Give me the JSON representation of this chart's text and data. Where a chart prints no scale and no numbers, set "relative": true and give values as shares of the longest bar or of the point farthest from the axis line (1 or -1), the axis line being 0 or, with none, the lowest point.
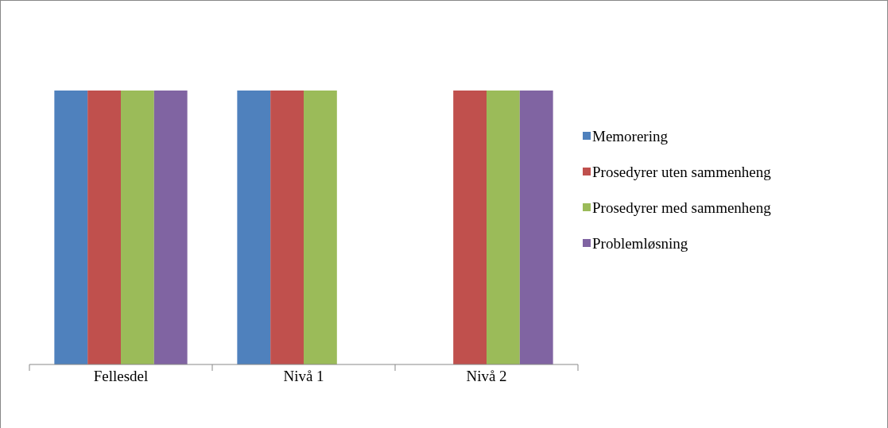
{
  "chart_data": {
    "type": "bar",
    "relative": true,
    "categories": [
      "Fellesdel",
      "Nivå 1",
      "Nivå 2"
    ],
    "series": [
      {
        "name": "Memorering",
        "color": "#4f81bd",
        "values": [
          1,
          1,
          null
        ]
      },
      {
        "name": "Prosedyrer uten sammenheng",
        "color": "#c0504d",
        "values": [
          1,
          1,
          1
        ]
      },
      {
        "name": "Prosedyrer med sammenheng",
        "color": "#9bbb59",
        "values": [
          1,
          1,
          1
        ]
      },
      {
        "name": "Problemløsning",
        "color": "#8064a2",
        "values": [
          1,
          null,
          1
        ]
      }
    ],
    "legend": "right"
  }
}
